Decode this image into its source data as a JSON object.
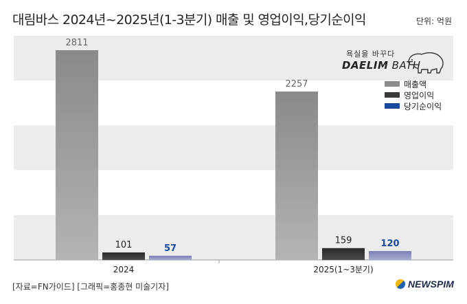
{
  "header": {
    "title": "대림바스 2024년~2025년(1-3분기) 매출 및 영업이익,당기순이익",
    "unit": "단위: 억원"
  },
  "logo": {
    "tagline": "욕실을 바꾸다",
    "name_bold": "DAELIM",
    "name_light": " BATH"
  },
  "footer": {
    "source": "[자료=FN가이드] [그래픽=홍종현 미술기자]",
    "brand": "NEWSPIM"
  },
  "chart_data": {
    "type": "bar",
    "categories": [
      "2024",
      "2025(1~3분기)"
    ],
    "series": [
      {
        "name": "매출액",
        "values": [
          2811,
          2257
        ],
        "color": "#8c8c8c"
      },
      {
        "name": "영업이익",
        "values": [
          101,
          159
        ],
        "color": "#3a3a3a"
      },
      {
        "name": "당기순이익",
        "values": [
          57,
          120
        ],
        "color": "#1a4aa0"
      }
    ],
    "ylim": [
      0,
      2811
    ],
    "grid": "alternating horizontal bands",
    "legend": "top-right"
  }
}
